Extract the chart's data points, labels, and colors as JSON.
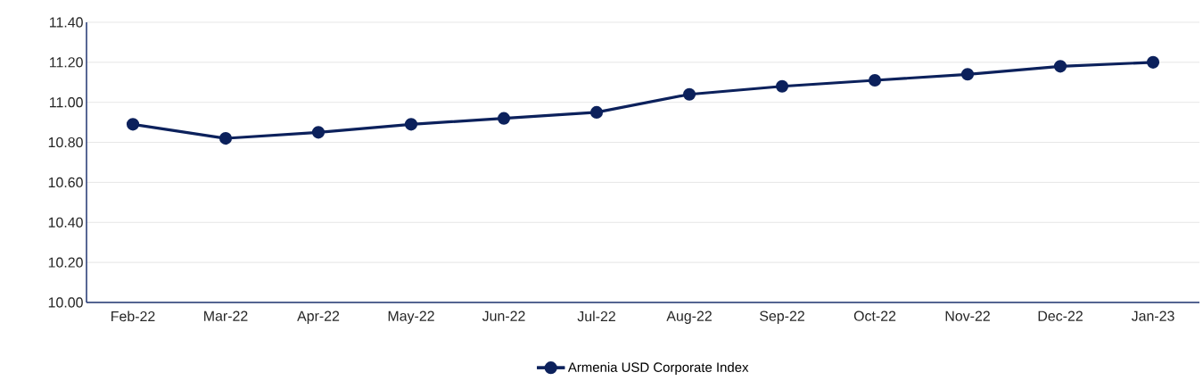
{
  "chart_data": {
    "type": "line",
    "categories": [
      "Feb-22",
      "Mar-22",
      "Apr-22",
      "May-22",
      "Jun-22",
      "Jul-22",
      "Aug-22",
      "Sep-22",
      "Oct-22",
      "Nov-22",
      "Dec-22",
      "Jan-23"
    ],
    "series": [
      {
        "name": "Armenia USD Corporate Index",
        "color": "#0c215c",
        "values": [
          10.89,
          10.82,
          10.85,
          10.89,
          10.92,
          10.95,
          11.04,
          11.08,
          11.11,
          11.14,
          11.18,
          11.2
        ]
      }
    ],
    "ylim": [
      10.0,
      11.4
    ],
    "yticks": [
      {
        "value": 10.0,
        "label": "10.00"
      },
      {
        "value": 10.2,
        "label": "10.20"
      },
      {
        "value": 10.4,
        "label": "10.40"
      },
      {
        "value": 10.6,
        "label": "10.60"
      },
      {
        "value": 10.8,
        "label": "10.80"
      },
      {
        "value": 11.0,
        "label": "11.00"
      },
      {
        "value": 11.2,
        "label": "11.20"
      },
      {
        "value": 11.4,
        "label": "11.40"
      }
    ],
    "grid": "y",
    "legend": "bottom",
    "marker": "circle",
    "line_style": "solid"
  }
}
